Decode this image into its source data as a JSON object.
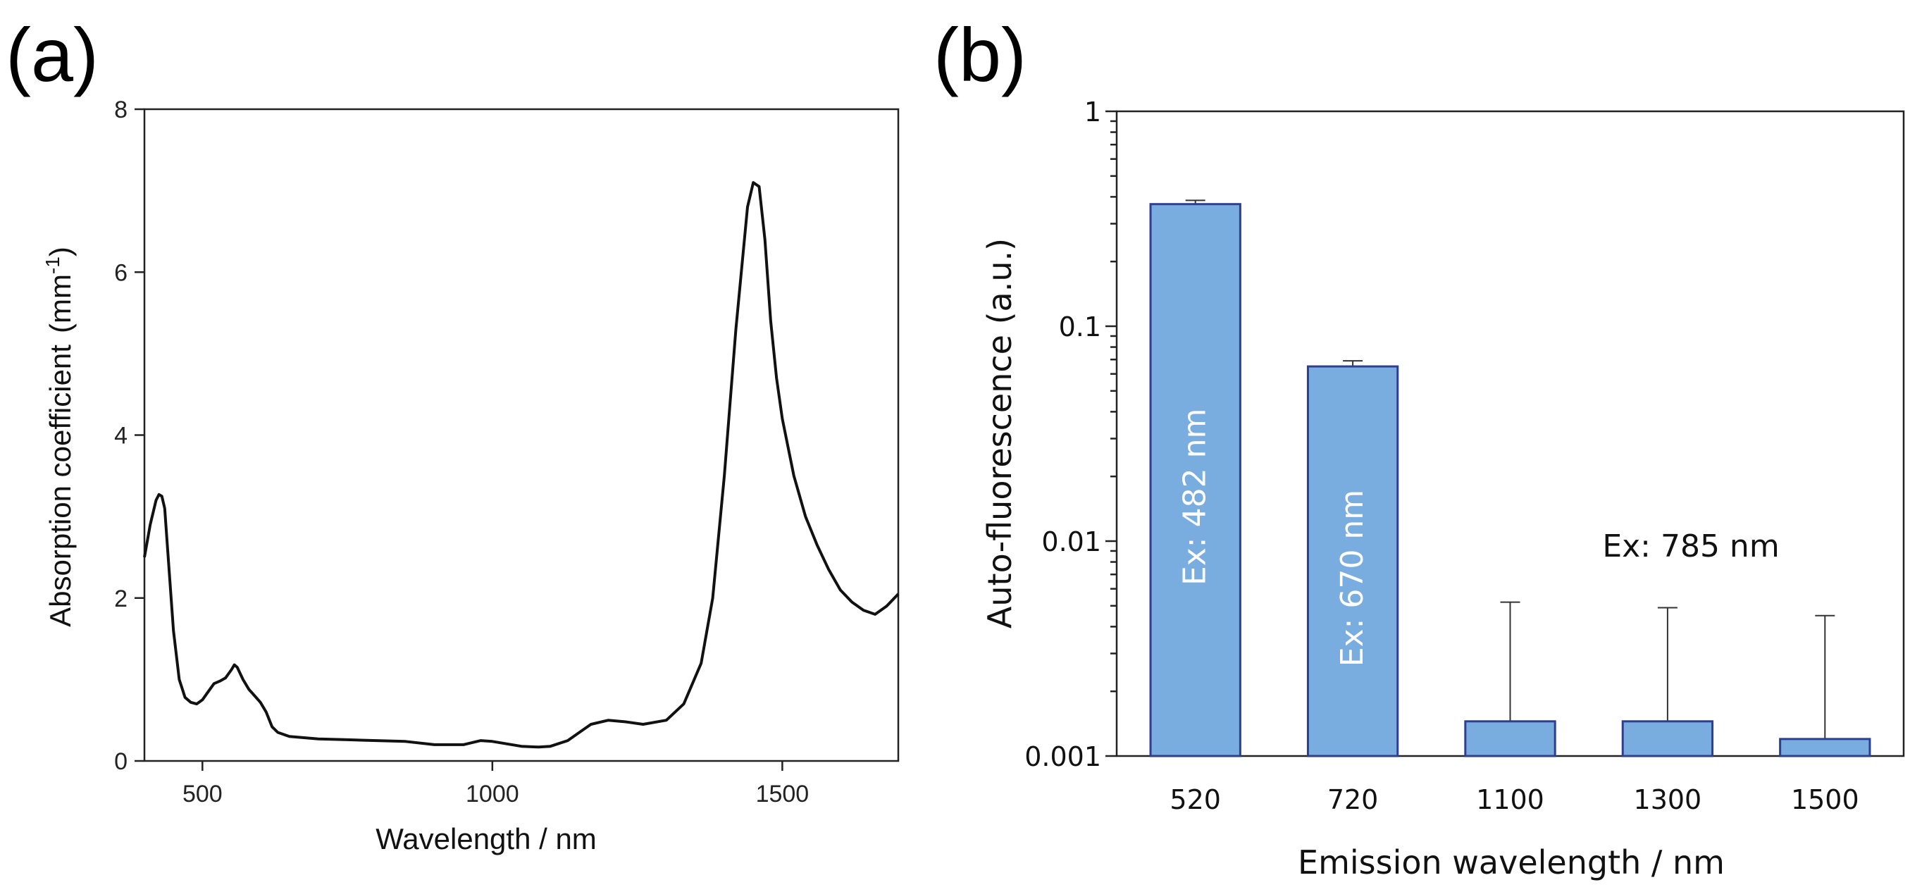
{
  "chart_data": [
    {
      "panel": "(a)",
      "type": "line",
      "title": "",
      "xlabel": "Wavelength / nm",
      "ylabel_main": "Absorption coefficient",
      "ylabel_unit_base": "(mm",
      "ylabel_unit_sup": "-1",
      "ylabel_unit_close": ")",
      "xlim": [
        400,
        1700
      ],
      "ylim": [
        0,
        8
      ],
      "xticks": [
        500,
        1000,
        1500
      ],
      "yticks": [
        0,
        2,
        4,
        6,
        8
      ],
      "grid": false,
      "series": [
        {
          "name": "absorption",
          "x": [
            400,
            410,
            420,
            425,
            430,
            435,
            440,
            450,
            460,
            470,
            480,
            490,
            500,
            510,
            520,
            530,
            540,
            550,
            555,
            560,
            570,
            580,
            590,
            600,
            610,
            620,
            630,
            650,
            700,
            750,
            800,
            850,
            900,
            950,
            980,
            1000,
            1050,
            1080,
            1100,
            1130,
            1150,
            1170,
            1200,
            1230,
            1260,
            1300,
            1330,
            1360,
            1380,
            1400,
            1420,
            1440,
            1450,
            1460,
            1470,
            1480,
            1490,
            1500,
            1520,
            1540,
            1560,
            1580,
            1600,
            1620,
            1640,
            1660,
            1680,
            1700
          ],
          "y": [
            2.5,
            2.9,
            3.2,
            3.27,
            3.25,
            3.1,
            2.6,
            1.6,
            1.0,
            0.78,
            0.72,
            0.7,
            0.75,
            0.85,
            0.95,
            0.98,
            1.02,
            1.12,
            1.18,
            1.15,
            1.0,
            0.88,
            0.8,
            0.72,
            0.6,
            0.42,
            0.35,
            0.3,
            0.27,
            0.26,
            0.25,
            0.24,
            0.2,
            0.2,
            0.25,
            0.24,
            0.18,
            0.17,
            0.18,
            0.25,
            0.35,
            0.45,
            0.5,
            0.48,
            0.45,
            0.5,
            0.7,
            1.2,
            2.0,
            3.5,
            5.3,
            6.8,
            7.1,
            7.05,
            6.4,
            5.4,
            4.7,
            4.2,
            3.5,
            3.0,
            2.65,
            2.35,
            2.1,
            1.95,
            1.85,
            1.8,
            1.9,
            2.05
          ]
        }
      ]
    },
    {
      "panel": "(b)",
      "type": "bar",
      "title": "",
      "xlabel": "Emission wavelength / nm",
      "ylabel": "Auto-fluorescence (a.u.)",
      "yscale": "log",
      "ylim": [
        0.001,
        1
      ],
      "yticks": [
        0.001,
        0.01,
        0.1,
        1
      ],
      "ytick_labels": [
        "0.001",
        "0.01",
        "0.1",
        "1"
      ],
      "categories": [
        "520",
        "720",
        "1100",
        "1300",
        "1500"
      ],
      "values": [
        0.37,
        0.065,
        0.00145,
        0.00145,
        0.0012
      ],
      "error_upper": [
        0.385,
        0.069,
        0.0052,
        0.0049,
        0.0045
      ],
      "bar_labels": [
        "Ex: 482 nm",
        "Ex: 670 nm",
        "",
        "",
        ""
      ],
      "annotation": "Ex: 785 nm",
      "bar_color": "#7aaddf",
      "bar_edge_color": "#2e3f8f",
      "grid": false
    }
  ]
}
